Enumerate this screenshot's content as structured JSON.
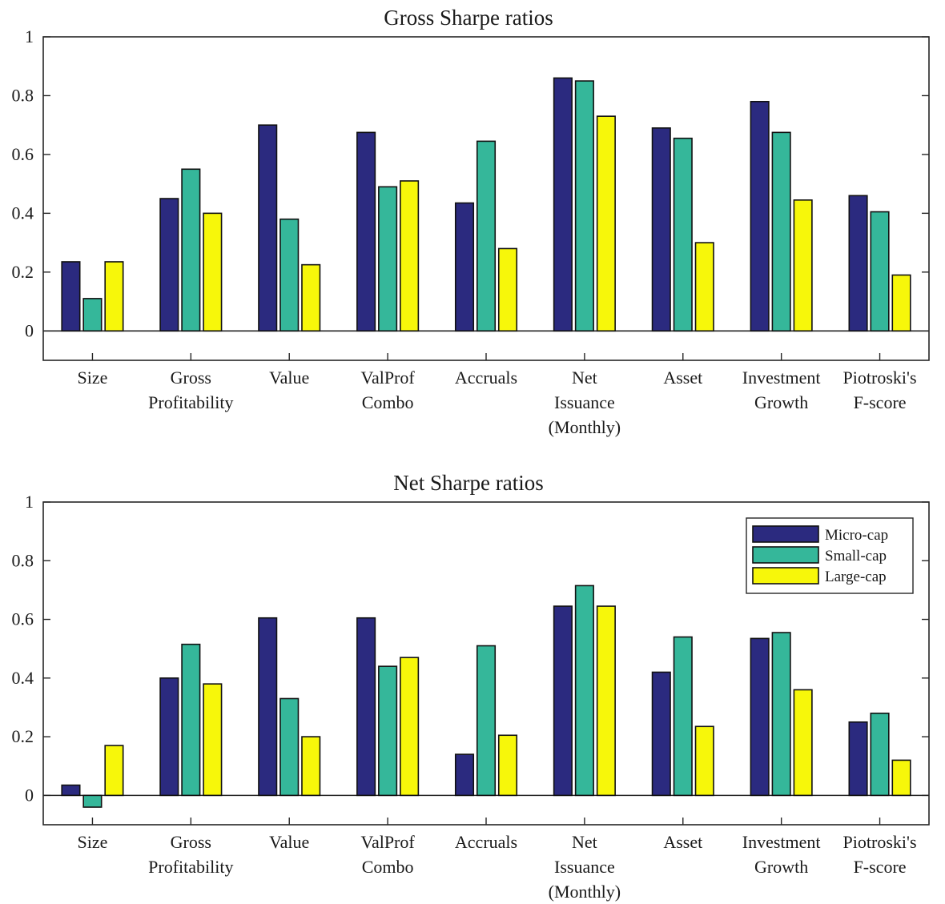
{
  "chart_data": [
    {
      "type": "bar",
      "title": "Gross Sharpe ratios",
      "xlabel": "",
      "ylabel": "",
      "ylim": [
        -0.1,
        1
      ],
      "yticks": [
        0,
        0.2,
        0.4,
        0.6,
        0.8,
        1
      ],
      "yticklabels": [
        "0",
        "0.2",
        "0.4",
        "0.6",
        "0.8",
        "1"
      ],
      "grid": false,
      "categories": [
        [
          "Size"
        ],
        [
          "Gross",
          "Profitability"
        ],
        [
          "Value"
        ],
        [
          "ValProf",
          "Combo"
        ],
        [
          "Accruals"
        ],
        [
          "Net",
          "Issuance",
          "(Monthly)"
        ],
        [
          "Asset"
        ],
        [
          "Investment",
          "Growth"
        ],
        [
          "Piotroski's",
          "F-score"
        ]
      ],
      "series": [
        {
          "name": "Micro-cap",
          "color": "#2b2a7f",
          "values": [
            0.235,
            0.45,
            0.7,
            0.675,
            0.435,
            0.86,
            0.69,
            0.78,
            0.46
          ]
        },
        {
          "name": "Small-cap",
          "color": "#35b79a",
          "values": [
            0.11,
            0.55,
            0.38,
            0.49,
            0.645,
            0.85,
            0.655,
            0.675,
            0.405
          ]
        },
        {
          "name": "Large-cap",
          "color": "#f7f70a",
          "values": [
            0.235,
            0.4,
            0.225,
            0.51,
            0.28,
            0.73,
            0.3,
            0.445,
            0.19
          ]
        }
      ],
      "legend": null
    },
    {
      "type": "bar",
      "title": "Net Sharpe ratios",
      "xlabel": "",
      "ylabel": "",
      "ylim": [
        -0.1,
        1
      ],
      "yticks": [
        0,
        0.2,
        0.4,
        0.6,
        0.8,
        1
      ],
      "yticklabels": [
        "0",
        "0.2",
        "0.4",
        "0.6",
        "0.8",
        "1"
      ],
      "grid": false,
      "categories": [
        [
          "Size"
        ],
        [
          "Gross",
          "Profitability"
        ],
        [
          "Value"
        ],
        [
          "ValProf",
          "Combo"
        ],
        [
          "Accruals"
        ],
        [
          "Net",
          "Issuance",
          "(Monthly)"
        ],
        [
          "Asset"
        ],
        [
          "Investment",
          "Growth"
        ],
        [
          "Piotroski's",
          "F-score"
        ]
      ],
      "series": [
        {
          "name": "Micro-cap",
          "color": "#2b2a7f",
          "values": [
            0.035,
            0.4,
            0.605,
            0.605,
            0.14,
            0.645,
            0.42,
            0.535,
            0.25
          ]
        },
        {
          "name": "Small-cap",
          "color": "#35b79a",
          "values": [
            -0.04,
            0.515,
            0.33,
            0.44,
            0.51,
            0.715,
            0.54,
            0.555,
            0.28
          ]
        },
        {
          "name": "Large-cap",
          "color": "#f7f70a",
          "values": [
            0.17,
            0.38,
            0.2,
            0.47,
            0.205,
            0.645,
            0.235,
            0.36,
            0.12
          ]
        }
      ],
      "legend": {
        "position": "top-right",
        "entries": [
          "Micro-cap",
          "Small-cap",
          "Large-cap"
        ]
      }
    }
  ]
}
